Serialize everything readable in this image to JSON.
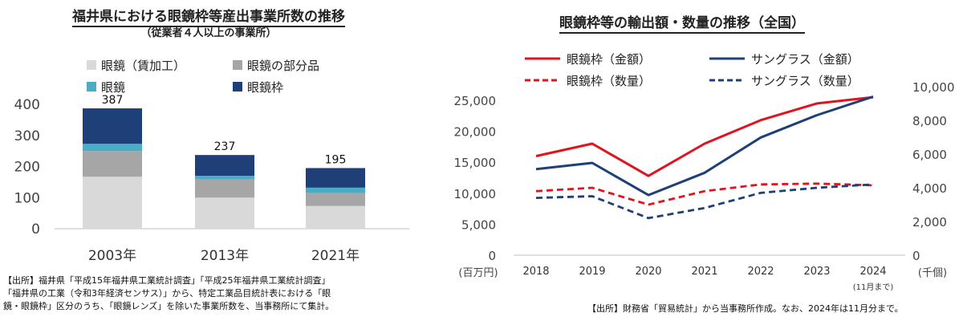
{
  "left": {
    "title": "福井県における眼鏡枠等産出事業所数の推移",
    "subtitle": "（従業者４人以上の事業所）",
    "source_lines": [
      "【出所】福井県「平成15年福井県工業統計調査」「平成25年福井県工業統計調査」",
      "「福井県の工業（令和3年経済センサス）」から、特定工業品目統計表における「眼",
      "鏡・眼鏡枠」区分のうち、「眼鏡レンズ」を除いた事業所数を、当事務所にて集計。"
    ]
  },
  "right": {
    "title": "眼鏡枠等の輸出額・数量の推移（全国）",
    "source": "【出所】財務省「貿易統計」から当事務所作成。なお、2024年は11月分まで。"
  },
  "chart_data": [
    {
      "type": "bar",
      "stacked": true,
      "categories": [
        "2003年",
        "2013年",
        "2021年"
      ],
      "series": [
        {
          "name": "眼鏡（賃加工）",
          "color": "#d9d9d9",
          "values": [
            167,
            100,
            73
          ]
        },
        {
          "name": "眼鏡の部分品",
          "color": "#a6a6a6",
          "values": [
            83,
            58,
            42
          ]
        },
        {
          "name": "眼鏡",
          "color": "#4bacc6",
          "values": [
            23,
            12,
            17
          ]
        },
        {
          "name": "眼鏡枠",
          "color": "#1f3f78",
          "values": [
            114,
            67,
            63
          ]
        }
      ],
      "totals": [
        387,
        237,
        195
      ],
      "yticks": [
        0,
        100,
        200,
        300,
        400
      ],
      "ylim": [
        0,
        420
      ],
      "legend_position": "top"
    },
    {
      "type": "line",
      "x": [
        "2018",
        "2019",
        "2020",
        "2021",
        "2022",
        "2023",
        "2024"
      ],
      "x_note": {
        "index": 6,
        "text": "(11月まで)"
      },
      "left_axis": {
        "label": "(百万円)",
        "ticks": [
          "0",
          "5,000",
          "10,000",
          "15,000",
          "20,000",
          "25,000"
        ],
        "ylim": [
          0,
          27500
        ]
      },
      "right_axis": {
        "label": "(千個)",
        "ticks": [
          "0",
          "2,000",
          "4,000",
          "6,000",
          "8,000",
          "10,000"
        ],
        "ylim": [
          0,
          11000
        ]
      },
      "series": [
        {
          "name": "眼鏡枠（金額）",
          "axis": "left",
          "dashed": false,
          "color": "#e0141e",
          "values": [
            16000,
            18000,
            12800,
            18000,
            21800,
            24500,
            25500
          ]
        },
        {
          "name": "サングラス（金額）",
          "axis": "left",
          "dashed": false,
          "color": "#1f3f78",
          "values": [
            13900,
            14900,
            9700,
            13300,
            19000,
            22600,
            25600
          ]
        },
        {
          "name": "眼鏡枠（数量）",
          "axis": "right",
          "dashed": true,
          "color": "#e0141e",
          "values": [
            3800,
            4000,
            3000,
            3800,
            4200,
            4250,
            4150
          ]
        },
        {
          "name": "サングラス（数量）",
          "axis": "right",
          "dashed": true,
          "color": "#1f3f78",
          "values": [
            3400,
            3500,
            2200,
            2800,
            3700,
            4000,
            4200
          ]
        }
      ],
      "legend_position": "top"
    }
  ]
}
